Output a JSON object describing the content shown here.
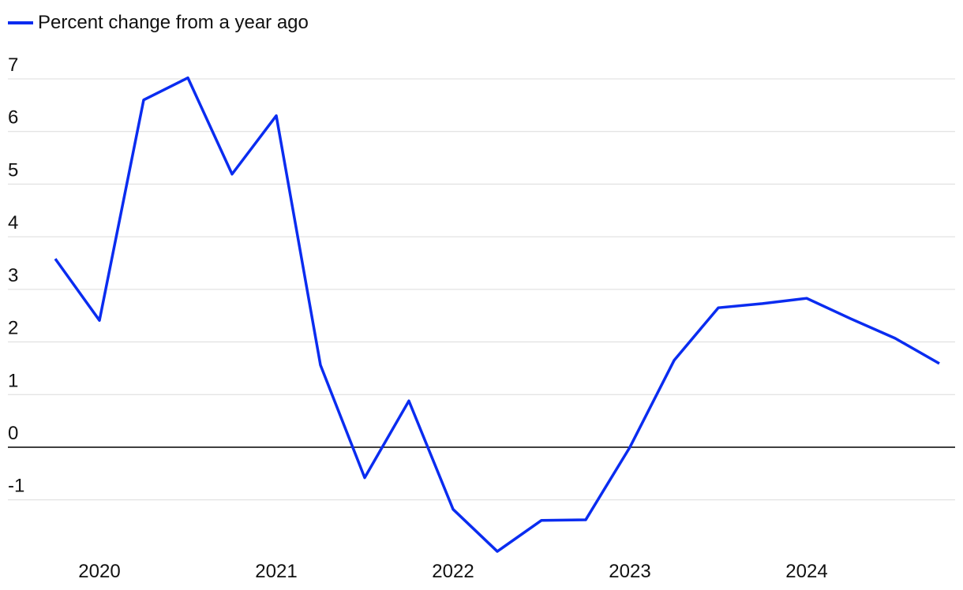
{
  "chart_data": {
    "type": "line",
    "categories": [
      null,
      "2020",
      null,
      null,
      null,
      "2021",
      null,
      null,
      null,
      "2022",
      null,
      null,
      null,
      "2023",
      null,
      null,
      null,
      "2024",
      null,
      null,
      null
    ],
    "series": [
      {
        "name": "Percent change from a year ago",
        "color": "#0a2cf0",
        "values": [
          3.58,
          2.41,
          6.6,
          7.02,
          5.19,
          6.3,
          1.56,
          -0.58,
          0.88,
          -1.18,
          -1.98,
          -1.39,
          -1.38,
          0,
          1.65,
          2.65,
          2.73,
          2.83,
          2.44,
          2.07,
          1.59
        ]
      }
    ],
    "ylim": [
      -2,
      7
    ],
    "yticks": [
      -1,
      0,
      1,
      2,
      3,
      4,
      5,
      6,
      7
    ],
    "grid": true
  }
}
